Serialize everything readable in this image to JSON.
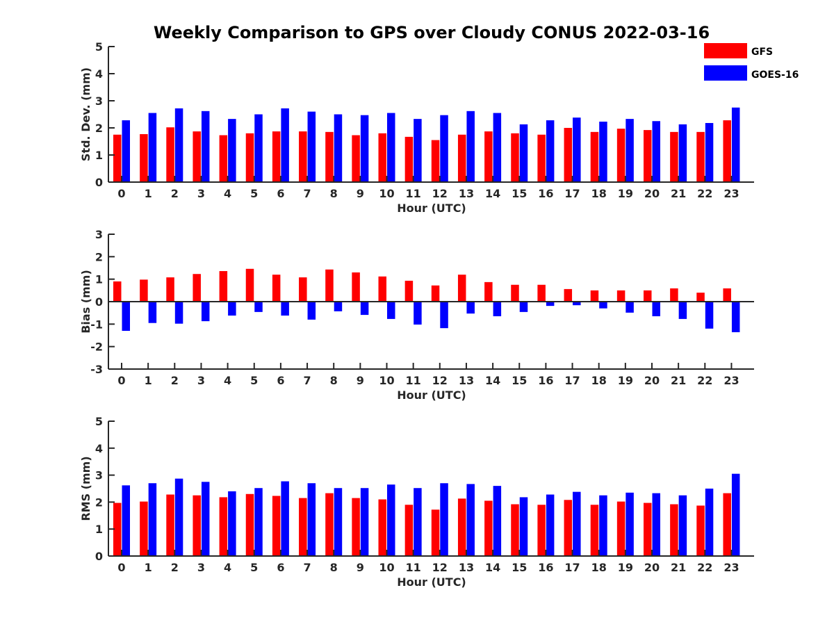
{
  "figure": {
    "title": "Weekly Comparison to GPS over Cloudy CONUS 2022-03-16"
  },
  "legend": {
    "placement": "top-right",
    "entries": [
      {
        "label": "GFS",
        "color": "#ff0000"
      },
      {
        "label": "GOES-16",
        "color": "#0000ff"
      }
    ]
  },
  "chart_data": [
    {
      "type": "bar",
      "xlabel": "Hour (UTC)",
      "ylabel": "Std. Dev. (mm)",
      "ylim": [
        0,
        5
      ],
      "yticks": [
        0,
        1,
        2,
        3,
        4,
        5
      ],
      "categories": [
        "0",
        "1",
        "2",
        "3",
        "4",
        "5",
        "6",
        "7",
        "8",
        "9",
        "10",
        "11",
        "12",
        "13",
        "14",
        "15",
        "16",
        "17",
        "18",
        "19",
        "20",
        "21",
        "22",
        "23"
      ],
      "series": [
        {
          "name": "GFS",
          "color": "#ff0000",
          "values": [
            1.75,
            1.77,
            2.02,
            1.87,
            1.73,
            1.8,
            1.87,
            1.87,
            1.85,
            1.73,
            1.8,
            1.67,
            1.55,
            1.75,
            1.87,
            1.8,
            1.75,
            2.0,
            1.85,
            1.97,
            1.92,
            1.85,
            1.85,
            2.28
          ]
        },
        {
          "name": "GOES-16",
          "color": "#0000ff",
          "values": [
            2.28,
            2.55,
            2.72,
            2.62,
            2.33,
            2.5,
            2.72,
            2.6,
            2.5,
            2.47,
            2.55,
            2.33,
            2.47,
            2.62,
            2.55,
            2.13,
            2.28,
            2.38,
            2.23,
            2.33,
            2.25,
            2.13,
            2.18,
            2.75
          ]
        }
      ]
    },
    {
      "type": "bar",
      "xlabel": "Hour (UTC)",
      "ylabel": "Bias (mm)",
      "ylim": [
        -3,
        3
      ],
      "yticks": [
        -3,
        -2,
        -1,
        0,
        1,
        2,
        3
      ],
      "categories": [
        "0",
        "1",
        "2",
        "3",
        "4",
        "5",
        "6",
        "7",
        "8",
        "9",
        "10",
        "11",
        "12",
        "13",
        "14",
        "15",
        "16",
        "17",
        "18",
        "19",
        "20",
        "21",
        "22",
        "23"
      ],
      "series": [
        {
          "name": "GFS",
          "color": "#ff0000",
          "values": [
            0.9,
            0.98,
            1.08,
            1.23,
            1.36,
            1.46,
            1.2,
            1.08,
            1.43,
            1.3,
            1.12,
            0.93,
            0.72,
            1.2,
            0.87,
            0.75,
            0.75,
            0.56,
            0.5,
            0.5,
            0.5,
            0.59,
            0.4,
            0.59
          ]
        },
        {
          "name": "GOES-16",
          "color": "#0000ff",
          "values": [
            -1.3,
            -0.95,
            -0.98,
            -0.87,
            -0.62,
            -0.46,
            -0.62,
            -0.8,
            -0.43,
            -0.59,
            -0.77,
            -1.02,
            -1.18,
            -0.53,
            -0.65,
            -0.46,
            -0.19,
            -0.16,
            -0.3,
            -0.49,
            -0.65,
            -0.77,
            -1.2,
            -1.36
          ]
        }
      ]
    },
    {
      "type": "bar",
      "xlabel": "Hour (UTC)",
      "ylabel": "RMS (mm)",
      "ylim": [
        0,
        5
      ],
      "yticks": [
        0,
        1,
        2,
        3,
        4,
        5
      ],
      "categories": [
        "0",
        "1",
        "2",
        "3",
        "4",
        "5",
        "6",
        "7",
        "8",
        "9",
        "10",
        "11",
        "12",
        "13",
        "14",
        "15",
        "16",
        "17",
        "18",
        "19",
        "20",
        "21",
        "22",
        "23"
      ],
      "series": [
        {
          "name": "GFS",
          "color": "#ff0000",
          "values": [
            1.97,
            2.02,
            2.28,
            2.25,
            2.18,
            2.3,
            2.23,
            2.15,
            2.33,
            2.15,
            2.1,
            1.9,
            1.72,
            2.13,
            2.05,
            1.92,
            1.9,
            2.08,
            1.9,
            2.02,
            1.97,
            1.92,
            1.87,
            2.33
          ]
        },
        {
          "name": "GOES-16",
          "color": "#0000ff",
          "values": [
            2.62,
            2.7,
            2.87,
            2.75,
            2.4,
            2.52,
            2.77,
            2.7,
            2.52,
            2.52,
            2.65,
            2.52,
            2.7,
            2.67,
            2.6,
            2.18,
            2.28,
            2.38,
            2.25,
            2.35,
            2.33,
            2.25,
            2.5,
            3.05
          ]
        }
      ]
    }
  ]
}
